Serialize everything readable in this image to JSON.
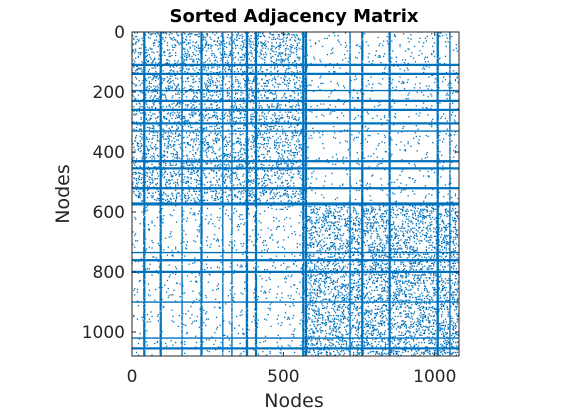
{
  "chart_data": {
    "type": "heatmap",
    "subtype": "spy-plot",
    "title": "Sorted Adjacency Matrix",
    "xlabel": "Nodes",
    "ylabel": "Nodes",
    "xlim": [
      0,
      1080
    ],
    "ylim": [
      0,
      1080
    ],
    "y_axis_direction": "reversed",
    "xticks": [
      0,
      500,
      1000
    ],
    "xtick_labels": [
      "0",
      "500",
      "1000"
    ],
    "yticks": [
      0,
      200,
      400,
      600,
      800,
      1000
    ],
    "ytick_labels": [
      "0",
      "200",
      "400",
      "600",
      "800",
      "1000"
    ],
    "marker_color": "#0072BD",
    "axis_color": "#262626",
    "grid": false,
    "legend": "none",
    "matrix_size": 1080,
    "communities": [
      {
        "start": 0,
        "end": 575,
        "density": 0.02
      },
      {
        "start": 575,
        "end": 1080,
        "density": 0.026
      }
    ],
    "between_community_density": 0.004,
    "dense_rows": [
      110,
      140,
      195,
      230,
      260,
      305,
      330,
      430,
      455,
      520,
      572,
      575,
      735,
      760,
      800,
      900,
      1020,
      1055
    ],
    "dense_cols": [
      40,
      95,
      165,
      230,
      300,
      330,
      380,
      410,
      565,
      575,
      720,
      760,
      850,
      1010,
      1050
    ]
  }
}
